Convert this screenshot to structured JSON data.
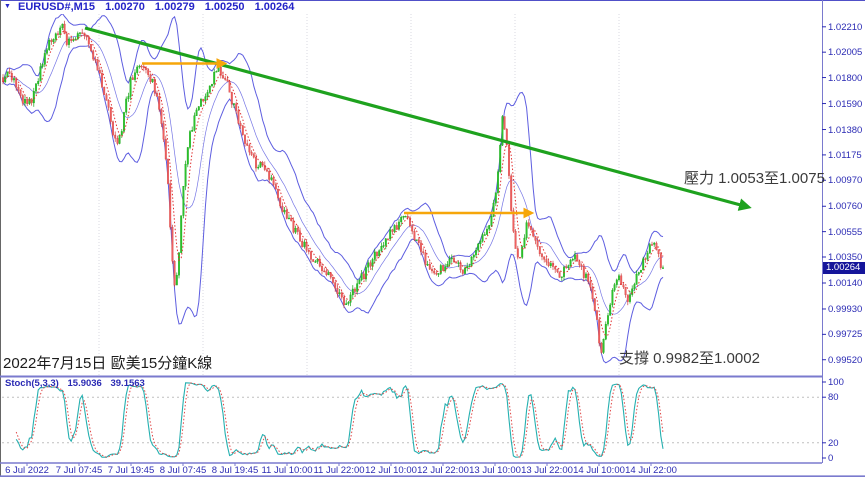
{
  "header": {
    "dropdown_icon": "▼",
    "symbol": "EURUSD#,M15",
    "open": "1.00270",
    "high": "1.00279",
    "low": "1.00250",
    "close": "1.00264"
  },
  "price_axis": {
    "ticks": [
      "1.02210",
      "1.02005",
      "1.01800",
      "1.01590",
      "1.01380",
      "1.01175",
      "1.00970",
      "1.00760",
      "1.00555",
      "1.00350",
      "1.00140",
      "0.99930",
      "0.99725",
      "0.99520"
    ],
    "current_tag": "1.00264"
  },
  "time_axis": {
    "ticks": [
      "6 Jul 2022",
      "7 Jul 07:45",
      "7 Jul 19:45",
      "8 Jul 07:45",
      "8 Jul 19:45",
      "11 Jul 10:00",
      "11 Jul 22:00",
      "12 Jul 10:00",
      "12 Jul 22:00",
      "13 Jul 10:00",
      "13 Jul 22:00",
      "14 Jul 10:00",
      "14 Jul 22:00"
    ]
  },
  "stoch_panel": {
    "label": "Stoch(5,3,3)",
    "k_value": "15.9036",
    "d_value": "39.1563",
    "axis_values": [
      100,
      80,
      20,
      0
    ],
    "level_lines": [
      80,
      20
    ]
  },
  "annotations": {
    "resistance": "壓力 1.0053至1.0075",
    "support": "支撐 0.9982至1.0002",
    "caption": "2022年7月15日 歐美15分鐘K線"
  },
  "chart_data": {
    "type": "candlestick",
    "symbol": "EURUSD#",
    "timeframe": "M15",
    "title": "EURUSD#,M15",
    "current": {
      "open": 1.0027,
      "high": 1.00279,
      "low": 1.0025,
      "close": 1.00264
    },
    "price_ticks": [
      1.0221,
      1.02005,
      1.018,
      1.0159,
      1.0138,
      1.01175,
      1.0097,
      1.0076,
      1.00555,
      1.0035,
      1.0014,
      0.9993,
      0.99725,
      0.9952
    ],
    "y_range": [
      0.9939,
      1.0231
    ],
    "time_ticks": [
      "6 Jul 2022",
      "7 Jul 07:45",
      "7 Jul 19:45",
      "8 Jul 07:45",
      "8 Jul 19:45",
      "11 Jul 10:00",
      "11 Jul 22:00",
      "12 Jul 10:00",
      "12 Jul 22:00",
      "13 Jul 10:00",
      "13 Jul 22:00",
      "14 Jul 10:00",
      "14 Jul 22:00"
    ],
    "resistance_zone": [
      1.0053,
      1.0075
    ],
    "support_zone": [
      0.9982,
      1.0002
    ],
    "price_path": [
      [
        3,
        1.018
      ],
      [
        10,
        1.0184
      ],
      [
        16,
        1.0174
      ],
      [
        22,
        1.0162
      ],
      [
        28,
        1.0158
      ],
      [
        34,
        1.0166
      ],
      [
        40,
        1.0185
      ],
      [
        46,
        1.02
      ],
      [
        52,
        1.0212
      ],
      [
        58,
        1.0218
      ],
      [
        63,
        1.0221
      ],
      [
        68,
        1.0207
      ],
      [
        73,
        1.0212
      ],
      [
        78,
        1.0216
      ],
      [
        83,
        1.0219
      ],
      [
        88,
        1.021
      ],
      [
        94,
        1.0196
      ],
      [
        100,
        1.018
      ],
      [
        106,
        1.0165
      ],
      [
        112,
        1.014
      ],
      [
        117,
        1.0127
      ],
      [
        122,
        1.014
      ],
      [
        127,
        1.0163
      ],
      [
        132,
        1.0181
      ],
      [
        138,
        1.0187
      ],
      [
        144,
        1.019
      ],
      [
        150,
        1.0181
      ],
      [
        156,
        1.0168
      ],
      [
        162,
        1.0142
      ],
      [
        167,
        1.0105
      ],
      [
        171,
        1.0048
      ],
      [
        175,
        1.0008
      ],
      [
        179,
        1.0035
      ],
      [
        183,
        1.009
      ],
      [
        188,
        1.0125
      ],
      [
        194,
        1.0148
      ],
      [
        200,
        1.016
      ],
      [
        207,
        1.017
      ],
      [
        213,
        1.018
      ],
      [
        219,
        1.0188
      ],
      [
        225,
        1.018
      ],
      [
        231,
        1.0163
      ],
      [
        237,
        1.0148
      ],
      [
        243,
        1.0133
      ],
      [
        250,
        1.012
      ],
      [
        257,
        1.0108
      ],
      [
        263,
        1.0112
      ],
      [
        269,
        1.01
      ],
      [
        276,
        1.0088
      ],
      [
        283,
        1.0074
      ],
      [
        290,
        1.0062
      ],
      [
        297,
        1.0053
      ],
      [
        304,
        1.0044
      ],
      [
        311,
        1.0037
      ],
      [
        318,
        1.0031
      ],
      [
        325,
        1.0024
      ],
      [
        332,
        1.0015
      ],
      [
        339,
        1.0004
      ],
      [
        345,
        0.9994
      ],
      [
        351,
        1.0003
      ],
      [
        357,
        1.0011
      ],
      [
        364,
        1.0021
      ],
      [
        371,
        1.0031
      ],
      [
        378,
        1.004
      ],
      [
        385,
        1.0048
      ],
      [
        392,
        1.0055
      ],
      [
        399,
        1.0063
      ],
      [
        405,
        1.007
      ],
      [
        411,
        1.0059
      ],
      [
        417,
        1.0046
      ],
      [
        423,
        1.0035
      ],
      [
        429,
        1.0028
      ],
      [
        436,
        1.0022
      ],
      [
        443,
        1.0028
      ],
      [
        450,
        1.0035
      ],
      [
        457,
        1.003
      ],
      [
        464,
        1.0022
      ],
      [
        471,
        1.003
      ],
      [
        478,
        1.0042
      ],
      [
        485,
        1.0053
      ],
      [
        490,
        1.0064
      ],
      [
        495,
        1.0084
      ],
      [
        499,
        1.0114
      ],
      [
        503,
        1.0155
      ],
      [
        507,
        1.0122
      ],
      [
        511,
        1.0072
      ],
      [
        515,
        1.0042
      ],
      [
        519,
        1.0028
      ],
      [
        523,
        1.0045
      ],
      [
        527,
        1.0066
      ],
      [
        532,
        1.0057
      ],
      [
        538,
        1.0042
      ],
      [
        545,
        1.0033
      ],
      [
        552,
        1.0026
      ],
      [
        559,
        1.002
      ],
      [
        566,
        1.0027
      ],
      [
        573,
        1.0035
      ],
      [
        580,
        1.0028
      ],
      [
        587,
        1.0017
      ],
      [
        592,
        1.0004
      ],
      [
        597,
        0.9984
      ],
      [
        601,
        0.9957
      ],
      [
        605,
        0.9974
      ],
      [
        609,
        0.9994
      ],
      [
        613,
        1.0011
      ],
      [
        618,
        1.002
      ],
      [
        623,
        1.001
      ],
      [
        628,
        1.0001
      ],
      [
        633,
        1.0012
      ],
      [
        638,
        1.0022
      ],
      [
        643,
        1.003
      ],
      [
        648,
        1.0039
      ],
      [
        653,
        1.0047
      ],
      [
        657,
        1.0041
      ],
      [
        660,
        1.0033
      ],
      [
        663,
        1.00264
      ]
    ],
    "indicators": {
      "bollinger": {
        "period": 12,
        "deviation": 2
      },
      "ma_dotted": {
        "period": 5
      },
      "stochastic": {
        "k_period": 5,
        "d_period": 3,
        "slowing": 3,
        "k_value": 15.9036,
        "d_value": 39.1563,
        "scale": [
          0,
          100
        ],
        "levels": [
          80,
          20
        ]
      }
    },
    "drawings": {
      "trend_arrow": [
        85,
        28,
        748,
        207
      ],
      "resistance_arrow_1": [
        142,
        63.5,
        224,
        63.5
      ],
      "resistance_arrow_2": [
        404,
        213,
        531,
        213
      ]
    }
  },
  "colors": {
    "background": "#ffffff",
    "axis_text": "#2b2bb4",
    "frame": "#7a7ace",
    "band": "#5e5ee0",
    "candle_up": "#2dc42d",
    "candle_up_dark": "#17a017",
    "candle_down": "#f0605f",
    "candle_down_dark": "#cc4040",
    "ma_dotted": "#e03030",
    "stoch_main": "#25b0b0",
    "stoch_signal": "#e04848",
    "trend_arrow": "#1ea21e",
    "hline_arrow": "#f6a60a",
    "price_tag_bg": "#15159a",
    "separator": "#d9d9e2",
    "stoch_grid": "#bfbfbf"
  }
}
